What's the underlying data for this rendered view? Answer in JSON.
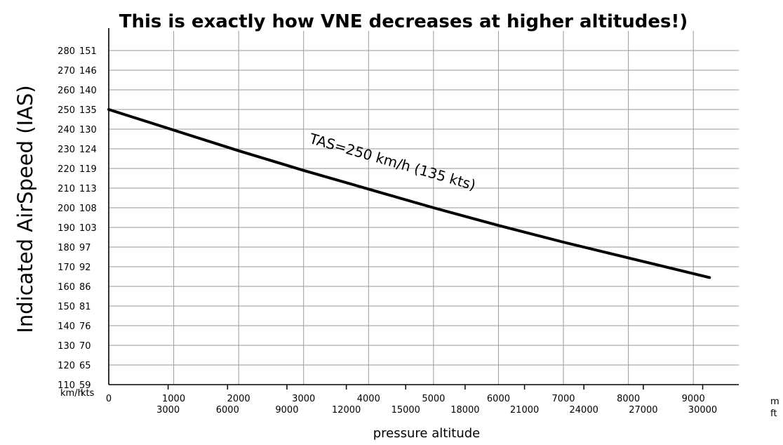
{
  "chart_data": {
    "type": "line",
    "title": "This is exactly how VNE decreases at higher altitudes!)",
    "ylabel": "Indicated AirSpeed (IAS)",
    "xlabel": "pressure altitude",
    "y_unit_kmh": "km/h",
    "y_unit_kts": "kts",
    "x_unit_m": "m",
    "x_unit_ft": "ft",
    "xlim_m": [
      0,
      9700
    ],
    "ylim_kmh": [
      110,
      290
    ],
    "grid": true,
    "y_ticks_kmh": [
      "110",
      "120",
      "130",
      "140",
      "150",
      "160",
      "170",
      "180",
      "190",
      "200",
      "210",
      "220",
      "230",
      "240",
      "250",
      "260",
      "270",
      "280"
    ],
    "y_ticks_kts": [
      "59",
      "65",
      "70",
      "76",
      "81",
      "86",
      "92",
      "97",
      "103",
      "108",
      "113",
      "119",
      "124",
      "130",
      "135",
      "140",
      "146",
      "151"
    ],
    "x_ticks_m": [
      "0",
      "1000",
      "2000",
      "3000",
      "4000",
      "5000",
      "6000",
      "7000",
      "8000",
      "9000"
    ],
    "x_ticks_ft": [
      "3000",
      "6000",
      "9000",
      "12000",
      "15000",
      "18000",
      "21000",
      "24000",
      "27000",
      "30000"
    ],
    "x_ticks_ft_m": [
      914,
      1829,
      2743,
      3658,
      4572,
      5486,
      6401,
      7315,
      8230,
      9144
    ],
    "annotation": "TAS=250 km/h (135 kts)",
    "series": [
      {
        "name": "TAS=250 km/h (135 kts)",
        "x": [
          0,
          1000,
          2000,
          3000,
          4000,
          5000,
          6000,
          7000,
          8000,
          9250
        ],
        "y": [
          250,
          239.5,
          229,
          219,
          209.5,
          200,
          191,
          182.5,
          174.5,
          164.5
        ]
      }
    ]
  }
}
